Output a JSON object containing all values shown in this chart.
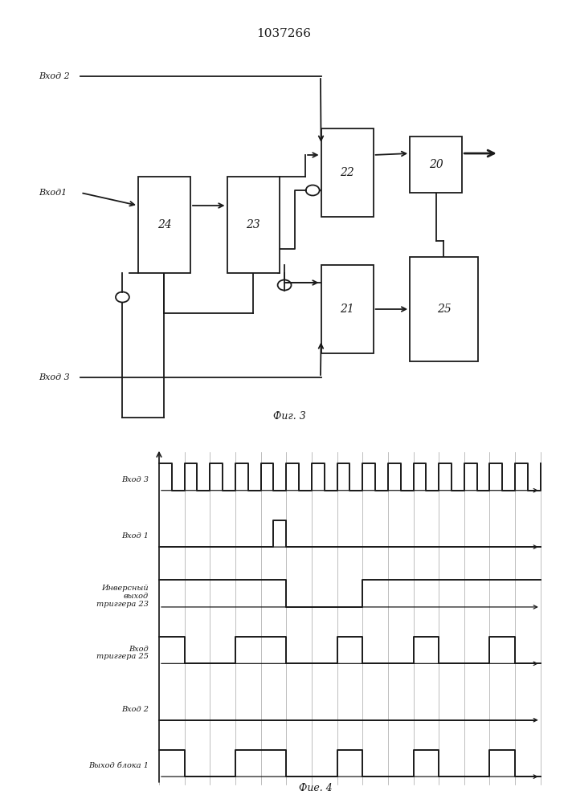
{
  "title": "1037266",
  "fig3_label": "Фиг. 3",
  "fig4_label": "Фие. 4",
  "line_color": "#1a1a1a",
  "signal_labels": [
    "Вход 3",
    "Вход 1",
    "Инверсный\nвыход\nтриггера 23",
    "Вход\nтриггера 25",
    "Вход 2",
    "Выход блока 1"
  ],
  "vhod3_times": [
    0,
    0.5,
    1,
    1.5,
    2,
    2.5,
    3,
    3.5,
    4,
    4.5,
    5,
    5.5,
    6,
    6.5,
    7,
    7.5,
    8,
    8.5,
    9,
    9.5,
    10,
    10.5,
    11,
    11.5,
    12,
    12.5,
    13,
    13.5,
    14,
    14.5,
    15
  ],
  "vhod3_vals": [
    1,
    0,
    1,
    0,
    1,
    0,
    1,
    0,
    1,
    0,
    1,
    0,
    1,
    0,
    1,
    0,
    1,
    0,
    1,
    0,
    1,
    0,
    1,
    0,
    1,
    0,
    1,
    0,
    1,
    0,
    1
  ],
  "vhod1_times": [
    0,
    4.5,
    5.0,
    15
  ],
  "vhod1_vals": [
    0,
    1,
    0,
    0
  ],
  "inv23_times": [
    0,
    5,
    8,
    15
  ],
  "inv23_vals": [
    1,
    0,
    1,
    1
  ],
  "trig25_times": [
    0,
    1,
    3,
    5,
    7,
    8,
    10,
    11,
    13,
    14,
    15
  ],
  "trig25_vals": [
    1,
    0,
    1,
    0,
    1,
    0,
    1,
    0,
    1,
    0,
    0
  ],
  "vhod2_times": [
    0,
    15
  ],
  "vhod2_vals": [
    0,
    0
  ],
  "vyhod1_times": [
    0,
    1,
    3,
    5,
    7,
    8,
    10,
    11,
    13,
    14,
    15
  ],
  "vyhod1_vals": [
    1,
    0,
    1,
    0,
    1,
    0,
    1,
    0,
    1,
    0,
    0
  ]
}
